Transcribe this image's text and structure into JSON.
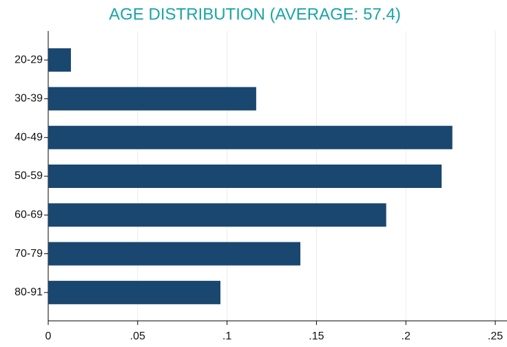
{
  "chart_data": {
    "type": "bar",
    "orientation": "horizontal",
    "title": "AGE DISTRIBUTION (AVERAGE: 57.4)",
    "categories": [
      "20-29",
      "30-39",
      "40-49",
      "50-59",
      "60-69",
      "70-79",
      "80-91"
    ],
    "values": [
      0.0127,
      0.1163,
      0.226,
      0.22,
      0.189,
      0.141,
      0.0963
    ],
    "color": "#1a476f",
    "xlim": [
      0,
      0.25
    ],
    "xticks": [
      0,
      {
        "value": 0.05,
        "label": ".05"
      },
      {
        "value": 0.1,
        "label": ".1"
      },
      {
        "value": 0.15,
        "label": ".15"
      },
      {
        "value": 0.2,
        "label": ".2"
      },
      {
        "value": 0.25,
        "label": ".25"
      }
    ],
    "grid": true
  }
}
